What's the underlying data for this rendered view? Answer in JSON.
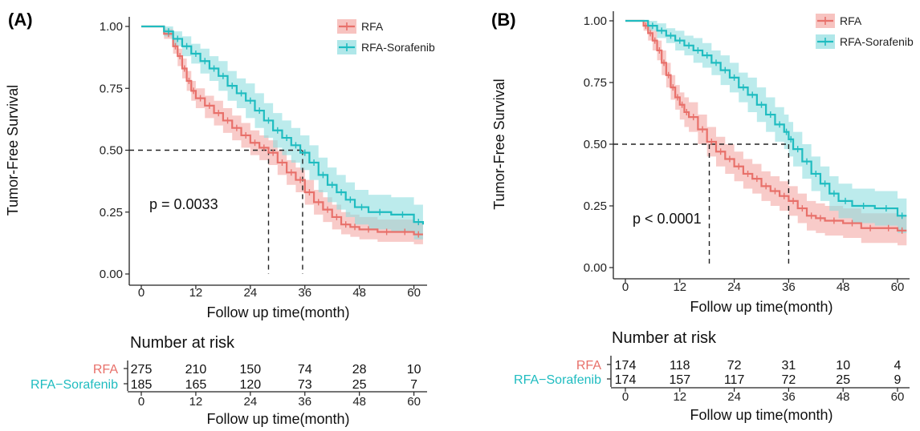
{
  "colors": {
    "rfa": "#e8706a",
    "rfa_band": "#f4a9a5",
    "sor": "#1fbcc0",
    "sor_band": "#8fdde0",
    "axis": "#222222"
  },
  "chart_data": [
    {
      "type": "line",
      "panel_label": "(A)",
      "xlabel": "Follow up time(month)",
      "ylabel": "Tumor-Free Survival",
      "xlim": [
        0,
        62
      ],
      "ylim": [
        0,
        1
      ],
      "xticks": [
        0,
        12,
        24,
        36,
        48,
        60
      ],
      "yticks": [
        "0.00",
        "0.25",
        "0.50",
        "0.75",
        "1.00"
      ],
      "grid": false,
      "legend": "top-right",
      "annotation": "p = 0.0033",
      "median_lines": [
        28,
        35.5
      ],
      "series": [
        {
          "name": "RFA",
          "color_key": "rfa",
          "x": [
            0,
            3,
            5,
            7,
            8,
            9,
            10,
            11,
            12,
            14,
            16,
            18,
            20,
            22,
            24,
            26,
            28,
            30,
            32,
            34,
            36,
            38,
            40,
            42,
            44,
            46,
            48,
            52,
            56,
            60,
            62
          ],
          "y": [
            1.0,
            1.0,
            0.97,
            0.92,
            0.88,
            0.83,
            0.78,
            0.74,
            0.71,
            0.68,
            0.65,
            0.62,
            0.59,
            0.56,
            0.53,
            0.51,
            0.49,
            0.45,
            0.41,
            0.38,
            0.33,
            0.29,
            0.26,
            0.23,
            0.2,
            0.19,
            0.18,
            0.17,
            0.17,
            0.16,
            0.16
          ],
          "lower": [
            1.0,
            1.0,
            0.95,
            0.89,
            0.84,
            0.79,
            0.74,
            0.7,
            0.67,
            0.63,
            0.6,
            0.57,
            0.54,
            0.51,
            0.48,
            0.46,
            0.44,
            0.4,
            0.36,
            0.33,
            0.28,
            0.24,
            0.21,
            0.18,
            0.16,
            0.15,
            0.14,
            0.13,
            0.13,
            0.12,
            0.12
          ],
          "upper": [
            1.0,
            1.0,
            0.99,
            0.95,
            0.91,
            0.87,
            0.82,
            0.78,
            0.75,
            0.72,
            0.7,
            0.67,
            0.64,
            0.61,
            0.58,
            0.56,
            0.54,
            0.5,
            0.46,
            0.43,
            0.38,
            0.34,
            0.31,
            0.28,
            0.25,
            0.24,
            0.23,
            0.22,
            0.22,
            0.21,
            0.21
          ]
        },
        {
          "name": "RFA-Sorafenib",
          "color_key": "sor",
          "x": [
            0,
            3,
            5,
            7,
            9,
            11,
            13,
            15,
            17,
            19,
            21,
            23,
            25,
            27,
            29,
            31,
            33,
            35,
            37,
            39,
            41,
            43,
            45,
            47,
            50,
            55,
            60,
            62
          ],
          "y": [
            1.0,
            1.0,
            0.98,
            0.95,
            0.92,
            0.89,
            0.86,
            0.83,
            0.8,
            0.76,
            0.73,
            0.7,
            0.66,
            0.62,
            0.58,
            0.55,
            0.52,
            0.49,
            0.45,
            0.4,
            0.36,
            0.33,
            0.3,
            0.27,
            0.25,
            0.24,
            0.21,
            0.2
          ],
          "lower": [
            1.0,
            1.0,
            0.96,
            0.92,
            0.88,
            0.85,
            0.81,
            0.78,
            0.74,
            0.7,
            0.67,
            0.63,
            0.59,
            0.55,
            0.51,
            0.48,
            0.45,
            0.42,
            0.38,
            0.33,
            0.29,
            0.26,
            0.23,
            0.2,
            0.18,
            0.17,
            0.14,
            0.13
          ],
          "upper": [
            1.0,
            1.0,
            1.0,
            0.98,
            0.96,
            0.93,
            0.91,
            0.88,
            0.86,
            0.82,
            0.79,
            0.77,
            0.73,
            0.69,
            0.65,
            0.62,
            0.59,
            0.56,
            0.52,
            0.47,
            0.43,
            0.4,
            0.37,
            0.34,
            0.32,
            0.31,
            0.28,
            0.27
          ]
        }
      ],
      "risk_table": {
        "title": "Number at risk",
        "xlabel": "Follow up time(month)",
        "rows": [
          {
            "name": "RFA",
            "color_key": "rfa",
            "values": [
              "275",
              "210",
              "150",
              "74",
              "28",
              "10"
            ]
          },
          {
            "name": "RFA−Sorafenib",
            "color_key": "sor",
            "values": [
              "185",
              "165",
              "120",
              "73",
              "25",
              "7"
            ]
          }
        ]
      }
    },
    {
      "type": "line",
      "panel_label": "(B)",
      "xlabel": "Follow up time(month)",
      "ylabel": "Tumor-Free Survival",
      "xlim": [
        0,
        62
      ],
      "ylim": [
        0,
        1
      ],
      "xticks": [
        0,
        12,
        24,
        36,
        48,
        60
      ],
      "yticks": [
        "0.00",
        "0.25",
        "0.50",
        "0.75",
        "1.00"
      ],
      "grid": false,
      "legend": "top-right",
      "annotation": "p < 0.0001",
      "median_lines": [
        18.5,
        36
      ],
      "series": [
        {
          "name": "RFA",
          "color_key": "rfa",
          "x": [
            0,
            2,
            4,
            5,
            6,
            7,
            8,
            9,
            10,
            11,
            12,
            13,
            14,
            16,
            18,
            20,
            22,
            24,
            26,
            28,
            30,
            32,
            34,
            36,
            38,
            40,
            42,
            44,
            48,
            52,
            56,
            60,
            62
          ],
          "y": [
            1.0,
            1.0,
            0.98,
            0.95,
            0.92,
            0.88,
            0.83,
            0.78,
            0.73,
            0.69,
            0.66,
            0.63,
            0.61,
            0.56,
            0.51,
            0.47,
            0.44,
            0.41,
            0.38,
            0.36,
            0.33,
            0.31,
            0.29,
            0.27,
            0.24,
            0.21,
            0.2,
            0.19,
            0.18,
            0.16,
            0.16,
            0.15,
            0.15
          ],
          "lower": [
            1.0,
            1.0,
            0.96,
            0.92,
            0.88,
            0.84,
            0.78,
            0.73,
            0.68,
            0.64,
            0.6,
            0.57,
            0.55,
            0.5,
            0.45,
            0.41,
            0.38,
            0.35,
            0.32,
            0.3,
            0.27,
            0.25,
            0.23,
            0.21,
            0.18,
            0.15,
            0.14,
            0.13,
            0.12,
            0.1,
            0.1,
            0.09,
            0.09
          ],
          "upper": [
            1.0,
            1.0,
            1.0,
            0.98,
            0.96,
            0.92,
            0.88,
            0.83,
            0.78,
            0.74,
            0.71,
            0.69,
            0.67,
            0.62,
            0.57,
            0.53,
            0.5,
            0.47,
            0.44,
            0.42,
            0.39,
            0.37,
            0.35,
            0.33,
            0.3,
            0.27,
            0.26,
            0.25,
            0.24,
            0.22,
            0.22,
            0.21,
            0.21
          ]
        },
        {
          "name": "RFA-Sorafenib",
          "color_key": "sor",
          "x": [
            0,
            3,
            5,
            7,
            9,
            11,
            13,
            15,
            17,
            19,
            21,
            23,
            25,
            27,
            29,
            31,
            33,
            35,
            36,
            37,
            39,
            41,
            43,
            45,
            47,
            50,
            55,
            60,
            62
          ],
          "y": [
            1.0,
            1.0,
            0.98,
            0.96,
            0.94,
            0.92,
            0.9,
            0.88,
            0.86,
            0.83,
            0.8,
            0.77,
            0.73,
            0.7,
            0.66,
            0.62,
            0.58,
            0.55,
            0.52,
            0.48,
            0.43,
            0.38,
            0.34,
            0.3,
            0.27,
            0.25,
            0.24,
            0.21,
            0.21
          ],
          "lower": [
            1.0,
            1.0,
            0.96,
            0.93,
            0.91,
            0.88,
            0.86,
            0.83,
            0.81,
            0.78,
            0.74,
            0.71,
            0.67,
            0.63,
            0.59,
            0.55,
            0.51,
            0.48,
            0.45,
            0.41,
            0.36,
            0.31,
            0.27,
            0.23,
            0.2,
            0.18,
            0.17,
            0.14,
            0.14
          ],
          "upper": [
            1.0,
            1.0,
            1.0,
            0.99,
            0.97,
            0.96,
            0.94,
            0.93,
            0.91,
            0.88,
            0.86,
            0.83,
            0.79,
            0.77,
            0.73,
            0.69,
            0.65,
            0.62,
            0.59,
            0.55,
            0.5,
            0.45,
            0.41,
            0.37,
            0.34,
            0.32,
            0.31,
            0.28,
            0.28
          ]
        }
      ],
      "risk_table": {
        "title": "Number at risk",
        "xlabel": "Follow up time(month)",
        "rows": [
          {
            "name": "RFA",
            "color_key": "rfa",
            "values": [
              "174",
              "118",
              "72",
              "31",
              "10",
              "4"
            ]
          },
          {
            "name": "RFA−Sorafenib",
            "color_key": "sor",
            "values": [
              "174",
              "157",
              "117",
              "72",
              "25",
              "9"
            ]
          }
        ]
      }
    }
  ]
}
